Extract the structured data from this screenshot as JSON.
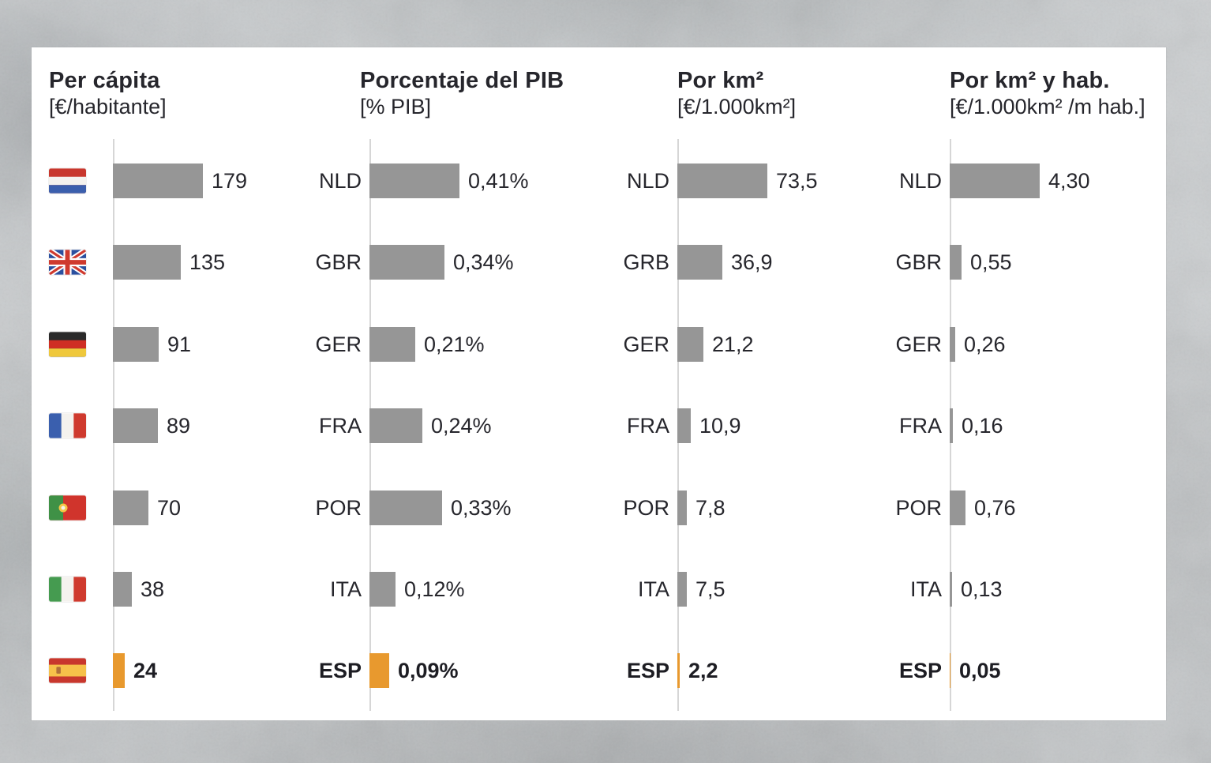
{
  "colors": {
    "bar": "#969696",
    "highlight": "#E8992E",
    "text": "#26262c",
    "axis": "#d6d6d6",
    "panel": "#ffffff"
  },
  "chart_data": [
    {
      "type": "bar",
      "id": "per-capita",
      "title": "Per cápita",
      "unit": "[€/habitante]",
      "label_style": "flags",
      "categories": [
        "NLD",
        "GBR",
        "GER",
        "FRA",
        "POR",
        "ITA",
        "ESP"
      ],
      "flags": [
        "nld",
        "gbr",
        "ger",
        "fra",
        "por",
        "ita",
        "esp"
      ],
      "values": [
        179,
        135,
        91,
        89,
        70,
        38,
        24
      ],
      "value_labels": [
        "179",
        "135",
        "91",
        "89",
        "70",
        "38",
        "24"
      ],
      "highlight_index": 6,
      "max": 179,
      "legend": "none",
      "grid": false
    },
    {
      "type": "bar",
      "id": "porcentaje-pib",
      "title": "Porcentaje del PIB",
      "unit": "[% PIB]",
      "label_style": "text",
      "categories": [
        "NLD",
        "GBR",
        "GER",
        "FRA",
        "POR",
        "ITA",
        "ESP"
      ],
      "values": [
        0.41,
        0.34,
        0.21,
        0.24,
        0.33,
        0.12,
        0.09
      ],
      "value_labels": [
        "0,41%",
        "0,34%",
        "0,21%",
        "0,24%",
        "0,33%",
        "0,12%",
        "0,09%"
      ],
      "highlight_index": 6,
      "max": 0.41,
      "legend": "none",
      "grid": false
    },
    {
      "type": "bar",
      "id": "por-km2",
      "title": "Por km²",
      "unit": "[€/1.000km²]",
      "label_style": "text",
      "categories": [
        "NLD",
        "GRB",
        "GER",
        "FRA",
        "POR",
        "ITA",
        "ESP"
      ],
      "values": [
        73.5,
        36.9,
        21.2,
        10.9,
        7.8,
        7.5,
        2.2
      ],
      "value_labels": [
        "73,5",
        "36,9",
        "21,2",
        "10,9",
        "7,8",
        "7,5",
        "2,2"
      ],
      "highlight_index": 6,
      "max": 73.5,
      "legend": "none",
      "grid": false
    },
    {
      "type": "bar",
      "id": "por-km2-hab",
      "title": "Por km² y hab.",
      "unit": "[€/1.000km² /m hab.]",
      "label_style": "text",
      "categories": [
        "NLD",
        "GBR",
        "GER",
        "FRA",
        "POR",
        "ITA",
        "ESP"
      ],
      "values": [
        4.3,
        0.55,
        0.26,
        0.16,
        0.76,
        0.13,
        0.05
      ],
      "value_labels": [
        "4,30",
        "0,55",
        "0,26",
        "0,16",
        "0,76",
        "0,13",
        "0,05"
      ],
      "highlight_index": 6,
      "max": 4.3,
      "legend": "none",
      "grid": false
    }
  ]
}
